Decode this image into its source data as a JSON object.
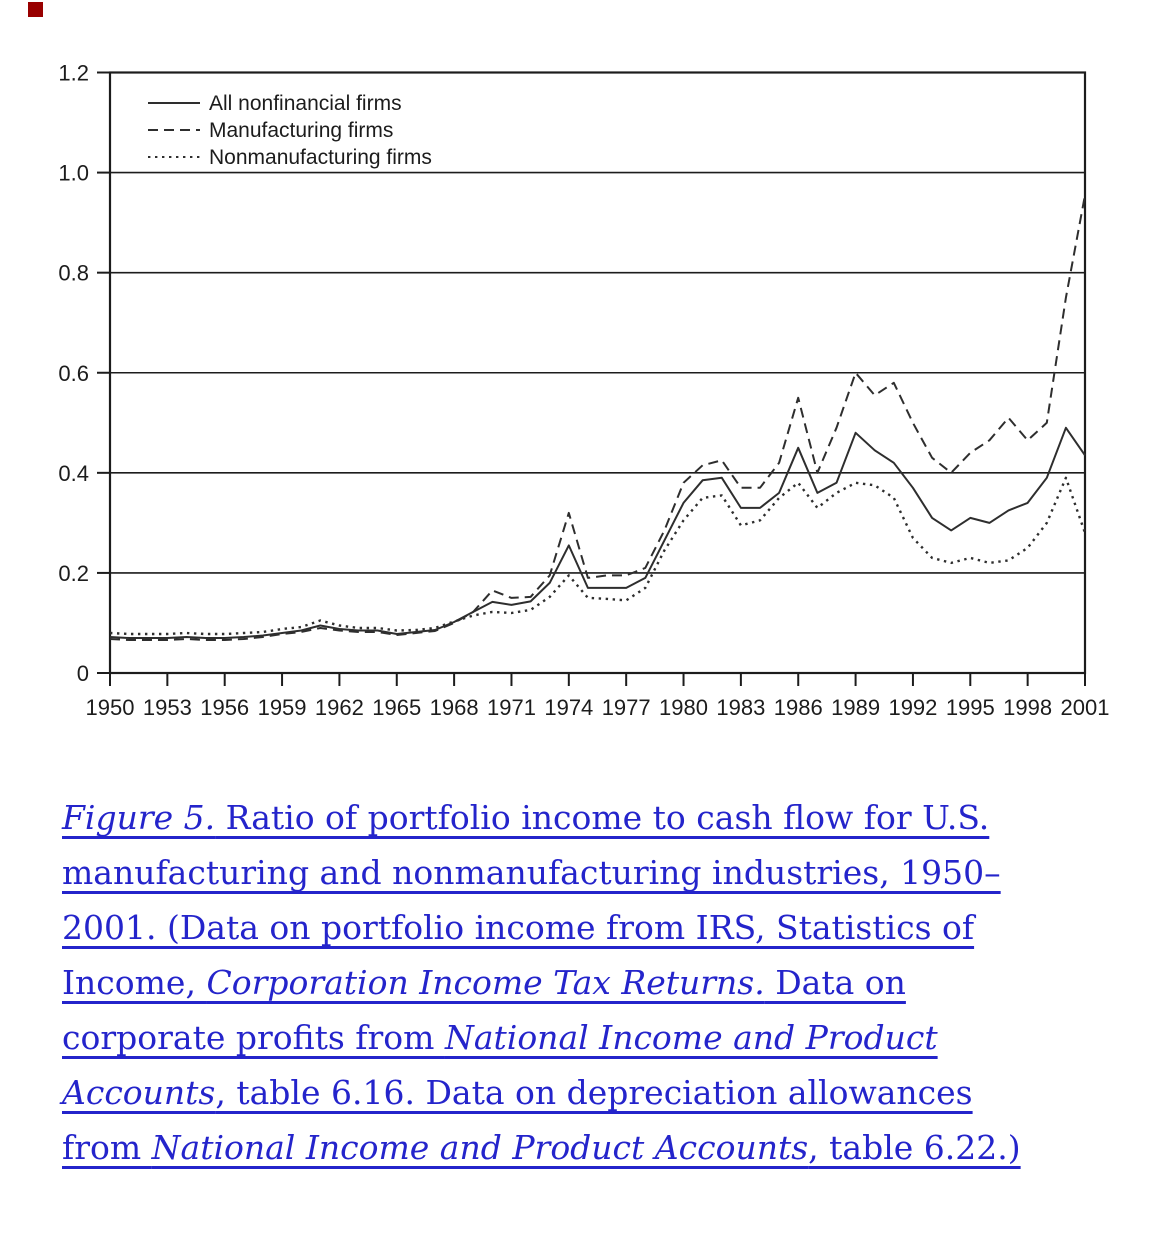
{
  "page": {
    "corner_marker_color": "#990000",
    "background": "#ffffff"
  },
  "chart_data": {
    "type": "line",
    "title": "",
    "xlabel": "",
    "ylabel": "",
    "x": [
      1950,
      1951,
      1952,
      1953,
      1954,
      1955,
      1956,
      1957,
      1958,
      1959,
      1960,
      1961,
      1962,
      1963,
      1964,
      1965,
      1966,
      1967,
      1968,
      1969,
      1970,
      1971,
      1972,
      1973,
      1974,
      1975,
      1976,
      1977,
      1978,
      1979,
      1980,
      1981,
      1982,
      1983,
      1984,
      1985,
      1986,
      1987,
      1988,
      1989,
      1990,
      1991,
      1992,
      1993,
      1994,
      1995,
      1996,
      1997,
      1998,
      1999,
      2000,
      2001
    ],
    "x_tick_labels": [
      "1950",
      "1953",
      "1956",
      "1959",
      "1962",
      "1965",
      "1968",
      "1971",
      "1974",
      "1977",
      "1980",
      "1983",
      "1986",
      "1989",
      "1992",
      "1995",
      "1998",
      "2001"
    ],
    "ylim": [
      0,
      1.2
    ],
    "y_ticks": [
      0,
      0.2,
      0.4,
      0.6,
      0.8,
      1.0,
      1.2
    ],
    "y_tick_labels": [
      "0",
      "0.2",
      "0.4",
      "0.6",
      "0.8",
      "1.0",
      "1.2"
    ],
    "gridline_values": [
      0.2,
      0.4,
      0.6,
      0.8,
      1.0
    ],
    "grid": "horizontal",
    "legend_position": "top-left-inside",
    "axis_color": "#1c1c1c",
    "line_color": "#2e2e2e",
    "series": [
      {
        "name": "All nonfinancial firms",
        "style": "solid",
        "values": [
          0.072,
          0.07,
          0.07,
          0.07,
          0.072,
          0.07,
          0.07,
          0.072,
          0.075,
          0.08,
          0.085,
          0.095,
          0.088,
          0.085,
          0.085,
          0.078,
          0.082,
          0.086,
          0.102,
          0.122,
          0.142,
          0.136,
          0.143,
          0.18,
          0.255,
          0.17,
          0.17,
          0.17,
          0.19,
          0.265,
          0.34,
          0.385,
          0.39,
          0.33,
          0.33,
          0.36,
          0.45,
          0.36,
          0.38,
          0.48,
          0.445,
          0.42,
          0.37,
          0.31,
          0.285,
          0.31,
          0.3,
          0.325,
          0.34,
          0.39,
          0.49,
          0.435
        ]
      },
      {
        "name": "Manufacturing firms",
        "style": "dashed",
        "values": [
          0.068,
          0.066,
          0.066,
          0.066,
          0.068,
          0.066,
          0.066,
          0.068,
          0.072,
          0.078,
          0.082,
          0.09,
          0.085,
          0.082,
          0.082,
          0.076,
          0.08,
          0.084,
          0.1,
          0.122,
          0.165,
          0.15,
          0.152,
          0.195,
          0.32,
          0.19,
          0.195,
          0.195,
          0.21,
          0.285,
          0.38,
          0.415,
          0.425,
          0.37,
          0.37,
          0.42,
          0.55,
          0.4,
          0.49,
          0.6,
          0.555,
          0.58,
          0.5,
          0.43,
          0.4,
          0.44,
          0.465,
          0.51,
          0.465,
          0.5,
          0.75,
          0.955
        ]
      },
      {
        "name": "Nonmanufacturing firms",
        "style": "dotted",
        "values": [
          0.08,
          0.078,
          0.078,
          0.078,
          0.08,
          0.078,
          0.078,
          0.08,
          0.082,
          0.088,
          0.092,
          0.105,
          0.095,
          0.09,
          0.09,
          0.085,
          0.086,
          0.09,
          0.103,
          0.115,
          0.122,
          0.12,
          0.126,
          0.152,
          0.195,
          0.15,
          0.148,
          0.145,
          0.17,
          0.245,
          0.305,
          0.35,
          0.355,
          0.295,
          0.305,
          0.35,
          0.38,
          0.33,
          0.36,
          0.38,
          0.375,
          0.35,
          0.27,
          0.23,
          0.22,
          0.23,
          0.22,
          0.225,
          0.25,
          0.3,
          0.39,
          0.28
        ]
      }
    ]
  },
  "caption": {
    "color": "#2424cb",
    "segments": [
      {
        "text": "Figure 5.",
        "italic": true
      },
      {
        "text": " Ratio of portfolio income to cash flow for U.S. manufacturing and nonmanufacturing industries, 1950–2001. (Data on portfolio income from IRS, Statistics of Income, ",
        "italic": false
      },
      {
        "text": "Corporation Income Tax Returns.",
        "italic": true
      },
      {
        "text": " Data on corporate profits from ",
        "italic": false
      },
      {
        "text": "National Income and Product Accounts",
        "italic": true
      },
      {
        "text": ", table 6.16. Data on depreciation allowances from ",
        "italic": false
      },
      {
        "text": "National Income and Product Accounts",
        "italic": true
      },
      {
        "text": ", table 6.22.)",
        "italic": false
      }
    ]
  }
}
